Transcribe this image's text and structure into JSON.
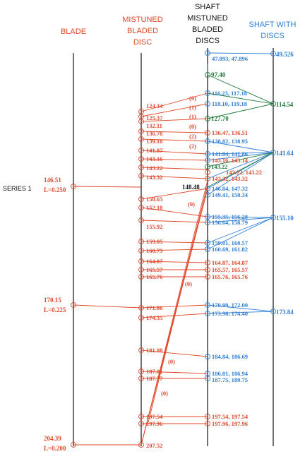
{
  "colors": {
    "red": "#e0482a",
    "blue": "#2f7fd6",
    "green": "#1f7a3a",
    "black": "#111111"
  },
  "headers": {
    "blade": "BLADE",
    "mistuned": [
      "MISTUNED",
      "BLADED",
      "DISC"
    ],
    "shaft_mistuned": [
      "SHAFT",
      "MISTUNED",
      "BLADED",
      "DISCS"
    ],
    "shaft_discs": [
      "SHAFT WITH",
      "DISCS"
    ]
  },
  "series_label": "SERIES 1",
  "blade_labels": [
    {
      "freq": "146.51",
      "l": "L=0.250"
    },
    {
      "freq": "170.15",
      "l": "L=0.225"
    },
    {
      "freq": "204.39",
      "l": "L=0.200"
    }
  ],
  "mistuned_labels": [
    "124.34",
    "125.37",
    "132.11",
    "136.78",
    "139.18",
    "141.87",
    "143.16",
    "143.22",
    "143.32",
    "150.65",
    "152.18",
    "155.92",
    "159.05",
    "160.75",
    "164.87",
    "165.57",
    "165.76",
    "171.86",
    "174.35",
    "181.08",
    "187.01",
    "187.77",
    "197.54",
    "197.96",
    "207.52"
  ],
  "tags": [
    "(0)",
    "(1)",
    "(1)",
    "(0)",
    "(2)",
    "(2)",
    "(0)",
    "(0)",
    "(0)",
    "(0)"
  ],
  "shaft_single": [
    "97.40",
    "127.70",
    "143.22"
  ],
  "shaft_label_148": "148.48",
  "shaft_pairs": [
    "47.893, 47.896",
    "116.23, 117.18",
    "118.10, 119.18",
    "136.47, 136.51",
    "138.82, 138.95",
    "141.84, 141.86",
    "143.16, 143.14",
    "143.22, 143.22",
    "143.32, 143.32",
    "146.84, 147.32",
    "149.41, 150.34",
    "155.35, 156.28",
    "156.64, 158.79",
    "159.01, 160.57",
    "160.69, 161.82",
    "164.87, 164.87",
    "165.57, 165.57",
    "165.76, 165.76",
    "170.99, 172.00",
    "173.90, 174.40",
    "184.84, 186.69",
    "186.81, 186.94",
    "187.75, 189.75",
    "197.54, 197.54",
    "197.96, 197.96"
  ],
  "shaft_discs_labels": [
    "49.526",
    "114.54",
    "141.64",
    "155.10",
    "173.84"
  ]
}
